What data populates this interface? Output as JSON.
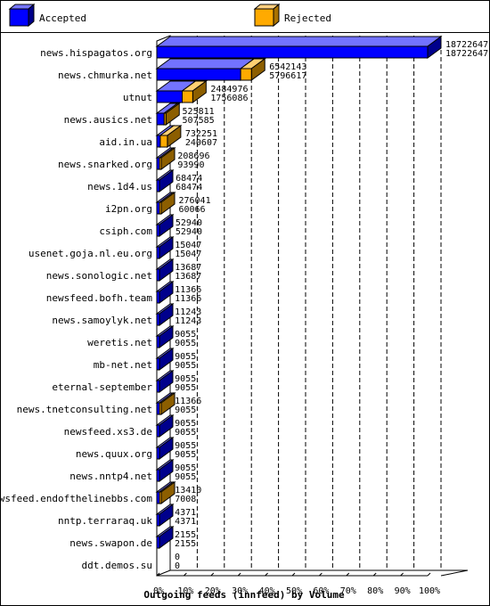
{
  "chart_data": {
    "type": "bar",
    "orientation": "horizontal",
    "style": "3d",
    "title": "",
    "xlabel": "Outgoing feeds (innfeed) by Volume",
    "ylabel": "",
    "xlim": [
      0,
      100
    ],
    "x_unit": "%",
    "x_ticks": [
      "0%",
      "10%",
      "20%",
      "30%",
      "40%",
      "50%",
      "60%",
      "70%",
      "80%",
      "90%",
      "100%"
    ],
    "grid": "vertical-dashed",
    "legend_position": "top",
    "series": [
      {
        "name": "Accepted",
        "color": "#0000ff"
      },
      {
        "name": "Rejected",
        "color": "#ffaa00"
      }
    ],
    "categories": [
      "news.hispagatos.org",
      "news.chmurka.net",
      "utnut",
      "news.ausics.net",
      "aid.in.ua",
      "news.snarked.org",
      "news.1d4.us",
      "i2pn.org",
      "csiph.com",
      "usenet.goja.nl.eu.org",
      "news.sonologic.net",
      "newsfeed.bofh.team",
      "news.samoylyk.net",
      "weretis.net",
      "mb-net.net",
      "eternal-september",
      "news.tnetconsulting.net",
      "newsfeed.xs3.de",
      "news.quux.org",
      "news.nntp4.net",
      "newsfeed.endofthelinebbs.com",
      "nntp.terraraq.uk",
      "news.swapon.de",
      "ddt.demos.su"
    ],
    "offered": [
      18722647,
      6542143,
      2484976,
      525811,
      732251,
      208696,
      68474,
      276041,
      52940,
      15047,
      13687,
      11366,
      11243,
      9055,
      9055,
      9055,
      11366,
      9055,
      9055,
      9055,
      13410,
      4371,
      2155,
      0
    ],
    "accepted": [
      18722647,
      5796617,
      1756086,
      507585,
      240607,
      93990,
      68474,
      60066,
      52940,
      15047,
      13687,
      11366,
      11243,
      9055,
      9055,
      9055,
      9055,
      9055,
      9055,
      9055,
      7008,
      4371,
      2155,
      0
    ]
  }
}
